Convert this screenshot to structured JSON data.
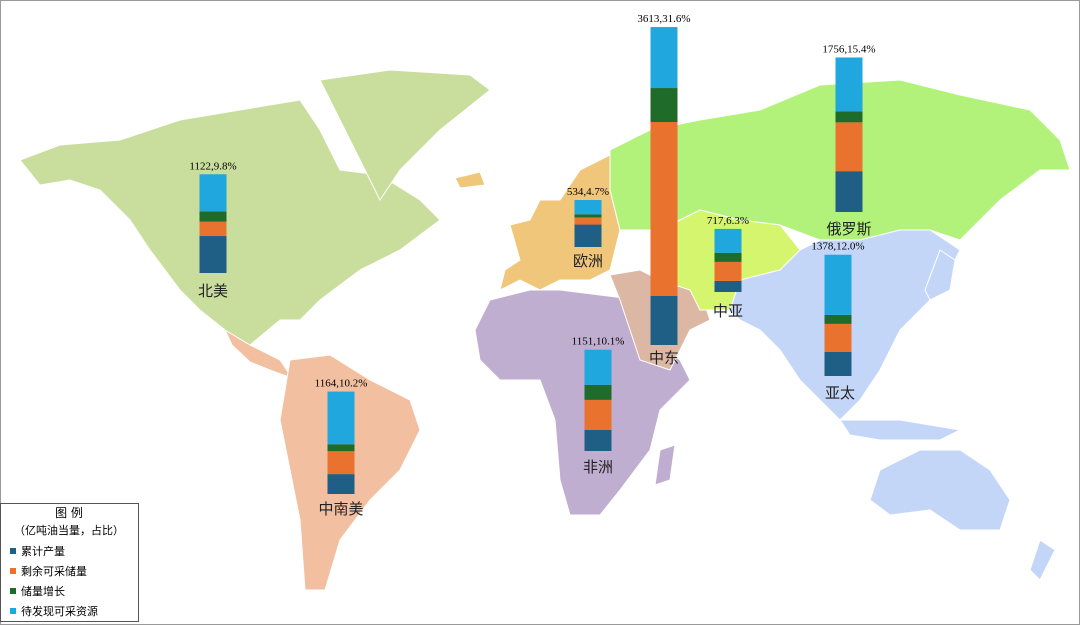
{
  "chart_data": {
    "type": "stacked-bar-map",
    "categories": [
      "北美",
      "欧洲",
      "中亚",
      "俄罗斯",
      "中东",
      "亚太",
      "非洲",
      "中南美"
    ],
    "total_labels": [
      "1122,9.8%",
      "534,4.7%",
      "717,6.3%",
      "1756,15.4%",
      "3613,31.6%",
      "1378,12.0%",
      "1151,10.1%",
      "1164,10.2%"
    ],
    "legend_title": "图 例",
    "legend_subtitle": "（亿吨油当量，占比）",
    "series": [
      {
        "name": "累计产量",
        "color": "#1f5f86",
        "values": [
          420,
          255,
          126,
          464,
          557,
          273,
          239,
          226
        ]
      },
      {
        "name": "剩余可采储量",
        "color": "#e8722e",
        "values": [
          164,
          81,
          216,
          555,
          1977,
          319,
          342,
          260
        ]
      },
      {
        "name": "储量增长",
        "color": "#1e6b2a",
        "values": [
          117,
          35,
          102,
          125,
          386,
          103,
          171,
          79
        ]
      },
      {
        "name": "待发现可采资源",
        "color": "#1fa7de",
        "values": [
          421,
          163,
          273,
          612,
          693,
          683,
          399,
          599
        ]
      }
    ]
  }
}
